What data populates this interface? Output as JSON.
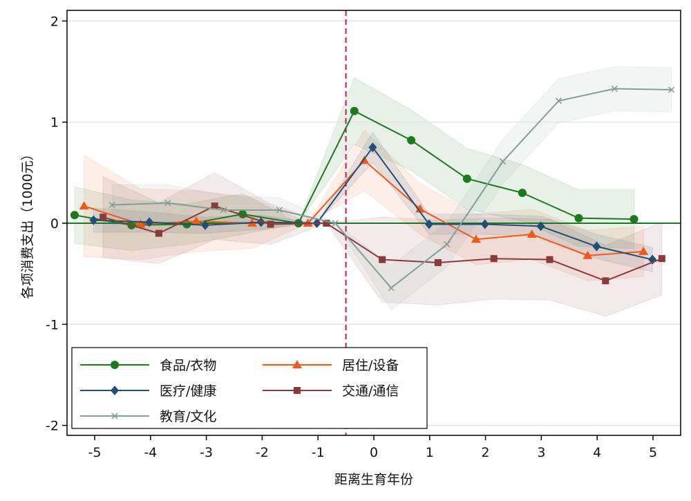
{
  "chart_data": {
    "type": "line",
    "title": "",
    "xlabel": "距离生育年份",
    "ylabel": "各项消费支出（1000元）",
    "xlim": [
      -5.5,
      5.5
    ],
    "ylim": [
      -2.1,
      2.1
    ],
    "xticks": [
      -5,
      -4,
      -3,
      -2,
      -1,
      0,
      1,
      2,
      3,
      4,
      5
    ],
    "xtick_labels": [
      "-5",
      "-4",
      "-3",
      "-2",
      "-1",
      "0",
      "1",
      "2",
      "3",
      "4",
      "5"
    ],
    "yticks": [
      -2,
      -1,
      0,
      1,
      2
    ],
    "ytick_labels": [
      "-2",
      "-1",
      "0",
      "1",
      "2"
    ],
    "grid": true,
    "reference_lines": {
      "vertical_x": -0.5,
      "horizontal_y": 0
    },
    "legend_position": "bottom-left",
    "series": [
      {
        "name": "食品/衣物",
        "color": "#1b7a1b",
        "marker": "circle",
        "x": [
          -5.36,
          -4.34,
          -3.35,
          -2.35,
          -1.35,
          -0.35,
          0.67,
          1.67,
          2.66,
          3.67,
          4.66
        ],
        "y": [
          0.08,
          -0.02,
          -0.01,
          0.09,
          0.0,
          1.11,
          0.82,
          0.44,
          0.3,
          0.05,
          0.04
        ],
        "ci_half": [
          0.28,
          0.25,
          0.2,
          0.2,
          0.0,
          0.33,
          0.3,
          0.3,
          0.28,
          0.28,
          0.29
        ]
      },
      {
        "name": "居住/设备",
        "color": "#f05a14",
        "marker": "triangle",
        "x": [
          -5.19,
          -4.18,
          -3.18,
          -2.18,
          -1.18,
          -0.17,
          0.83,
          1.83,
          2.83,
          3.83,
          4.83
        ],
        "y": [
          0.17,
          -0.01,
          0.02,
          0.0,
          0.0,
          0.62,
          0.14,
          -0.16,
          -0.11,
          -0.32,
          -0.28
        ],
        "ci_half": [
          0.5,
          0.35,
          0.3,
          0.25,
          0.0,
          0.3,
          0.25,
          0.25,
          0.25,
          0.25,
          0.25
        ]
      },
      {
        "name": "医疗/健康",
        "color": "#1f4e79",
        "marker": "diamond",
        "x": [
          -5.02,
          -4.02,
          -3.02,
          -2.02,
          -1.02,
          -0.02,
          0.99,
          1.99,
          2.99,
          3.99,
          4.99
        ],
        "y": [
          0.03,
          0.01,
          -0.02,
          0.01,
          0.0,
          0.75,
          -0.01,
          -0.01,
          -0.03,
          -0.23,
          -0.36
        ],
        "ci_half": [
          0.12,
          0.1,
          0.08,
          0.07,
          0.0,
          0.15,
          0.1,
          0.1,
          0.1,
          0.12,
          0.12
        ]
      },
      {
        "name": "交通/通信",
        "color": "#8b3a3a",
        "marker": "square",
        "x": [
          -4.85,
          -3.85,
          -2.85,
          -1.85,
          -0.85,
          0.15,
          1.15,
          2.15,
          3.15,
          4.15,
          5.16
        ],
        "y": [
          0.06,
          -0.1,
          0.17,
          -0.01,
          0.0,
          -0.36,
          -0.39,
          -0.35,
          -0.36,
          -0.57,
          -0.35
        ],
        "ci_half": [
          0.4,
          0.3,
          0.33,
          0.2,
          0.0,
          0.42,
          0.42,
          0.4,
          0.4,
          0.35,
          0.36
        ]
      },
      {
        "name": "教育/文化",
        "color": "#7fa098",
        "marker": "x",
        "x": [
          -4.69,
          -3.69,
          -2.69,
          -1.69,
          -0.69,
          0.31,
          1.31,
          2.31,
          3.31,
          4.31,
          5.33
        ],
        "y": [
          0.18,
          0.2,
          0.13,
          0.13,
          0.0,
          -0.64,
          -0.21,
          0.61,
          1.21,
          1.33,
          1.32
        ],
        "ci_half": [
          0.2,
          0.18,
          0.15,
          0.12,
          0.0,
          0.22,
          0.22,
          0.22,
          0.22,
          0.22,
          0.22
        ]
      }
    ]
  }
}
